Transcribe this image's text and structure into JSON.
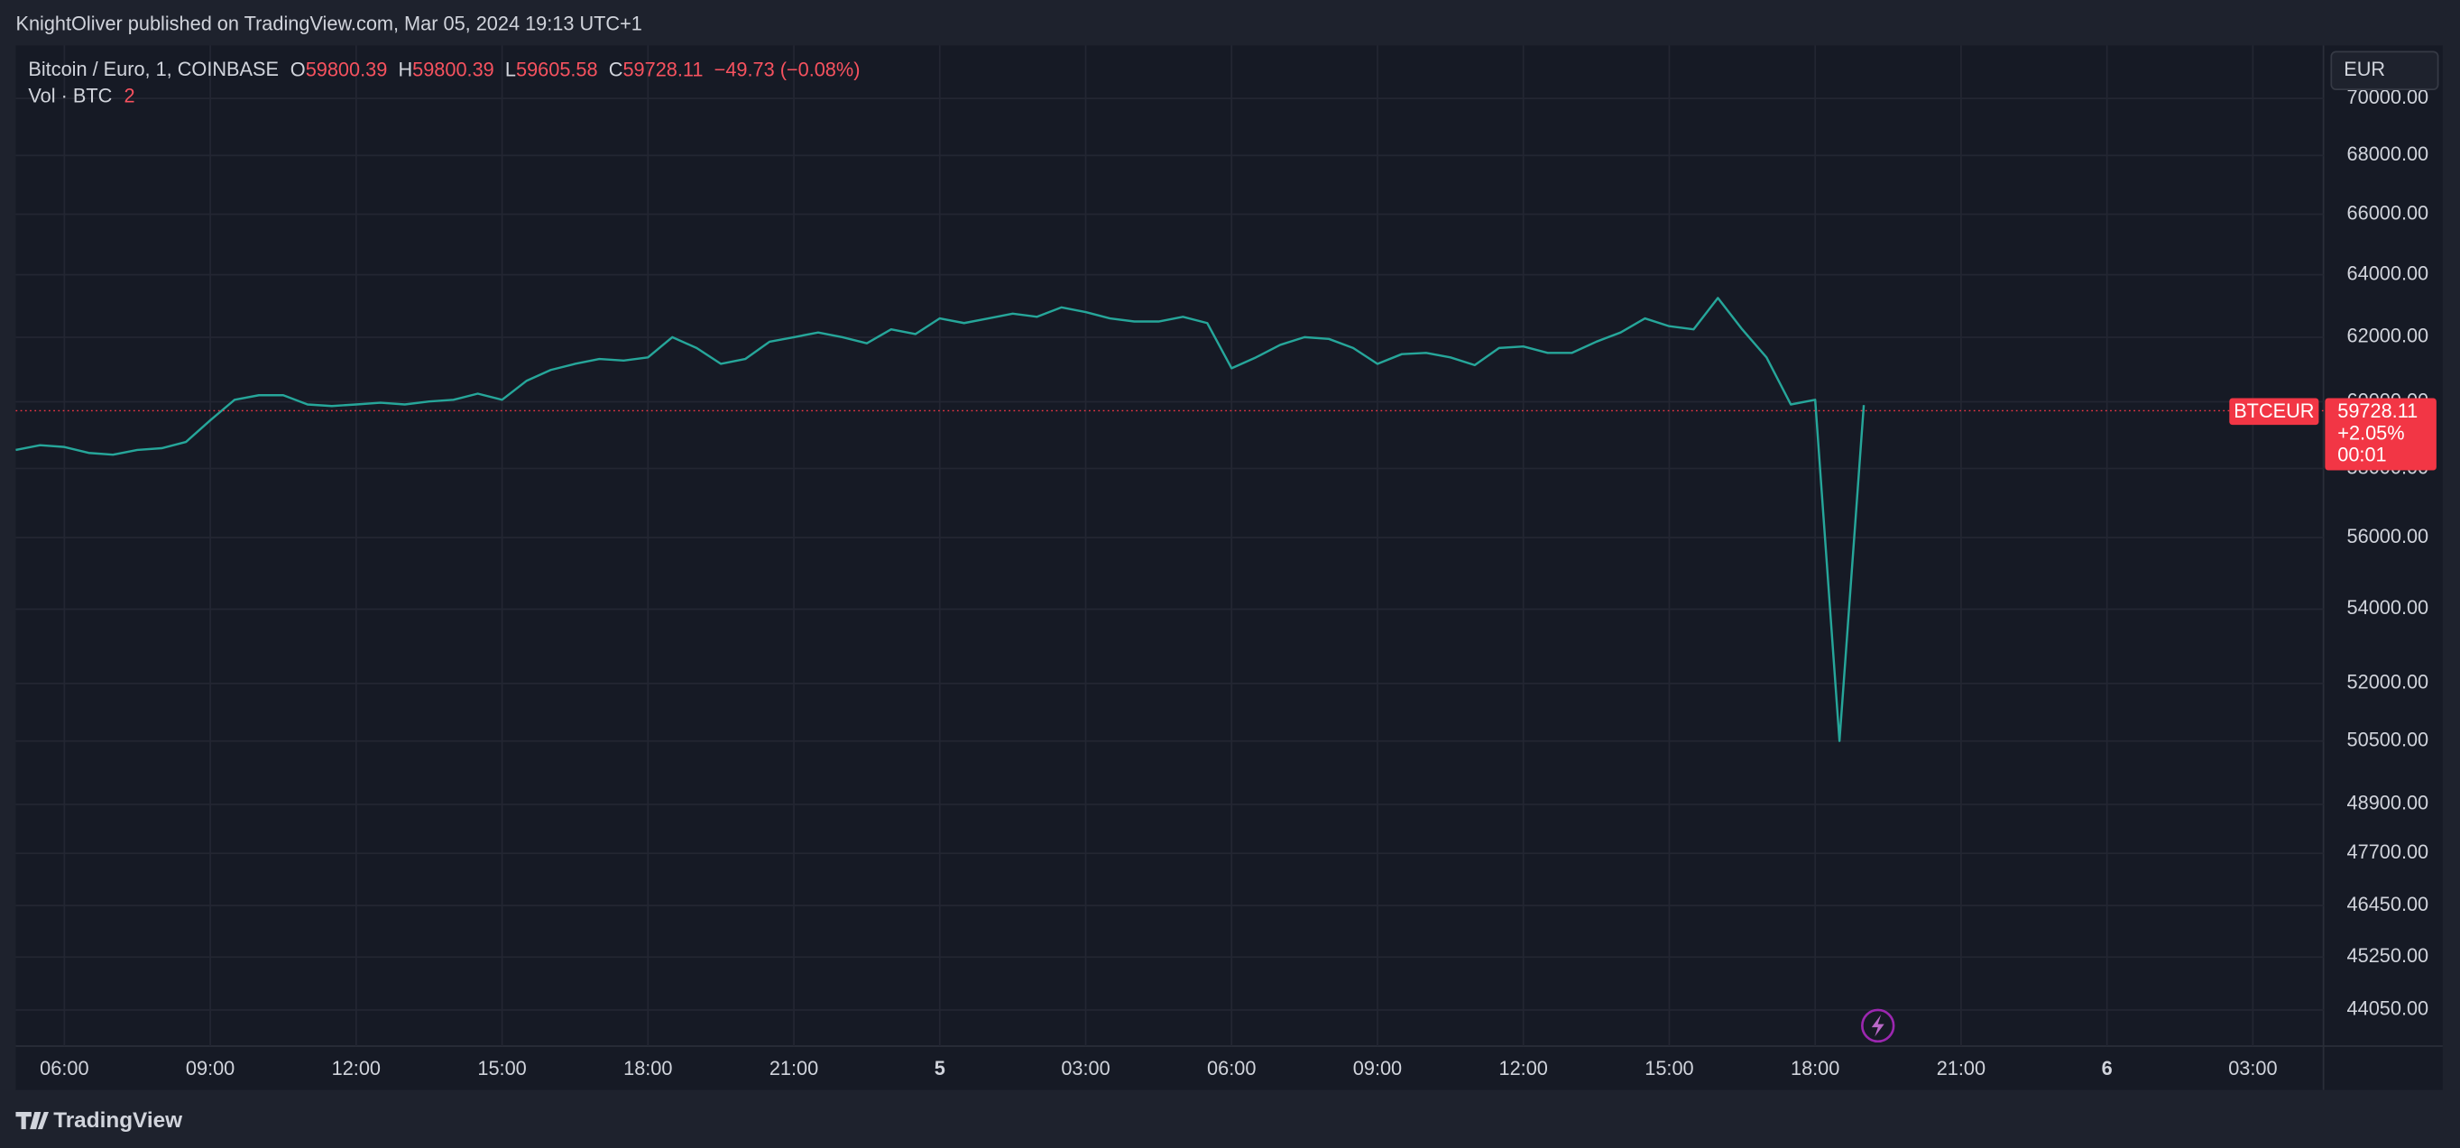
{
  "header": {
    "title": "KnightOliver published on TradingView.com, Mar 05, 2024 19:13 UTC+1"
  },
  "footer": {
    "brand": "TradingView"
  },
  "chart_data": {
    "type": "line",
    "symbol": "Bitcoin / Euro, 1, COINBASE",
    "ohlc": {
      "o_label": "O",
      "o": 59800.39,
      "h_label": "H",
      "h": 59800.39,
      "l_label": "L",
      "l": 59605.58,
      "c_label": "C",
      "change": "−49.73 (−0.08%)"
    },
    "volume_label": "Vol · BTC",
    "volume_value": 2,
    "currency": "EUR",
    "ticker": "BTCEUR",
    "last_price": 59728.11,
    "last_change": "+2.05%",
    "countdown": "00:01",
    "log_scale": true,
    "grid": true,
    "categories": [
      null,
      null,
      "06:00",
      null,
      null,
      null,
      null,
      null,
      "09:00",
      null,
      null,
      null,
      null,
      null,
      "12:00",
      null,
      null,
      null,
      null,
      null,
      "15:00",
      null,
      null,
      null,
      null,
      null,
      "18:00",
      null,
      null,
      null,
      null,
      null,
      "21:00",
      null,
      null,
      null,
      null,
      null,
      "5",
      null,
      null,
      null,
      null,
      null,
      "03:00",
      null,
      null,
      null,
      null,
      null,
      "06:00",
      null,
      null,
      null,
      null,
      null,
      "09:00",
      null,
      null,
      null,
      null,
      null,
      "12:00",
      null,
      null,
      null,
      null,
      null,
      "15:00",
      null,
      null,
      null,
      null,
      null,
      "18:00",
      null,
      null,
      null,
      null,
      null,
      "21:00",
      null,
      null,
      null,
      null,
      null,
      "6",
      null,
      null,
      null,
      null,
      null,
      "03:00",
      null,
      null,
      null
    ],
    "series": [
      {
        "name": "BTCEUR",
        "color": "#26a69a",
        "values": [
          58550,
          58690,
          58640,
          58460,
          58410,
          58550,
          58600,
          58790,
          59440,
          60060,
          60200,
          60200,
          59920,
          59870,
          59920,
          59970,
          59920,
          60010,
          60060,
          60250,
          60060,
          60640,
          60980,
          61170,
          61320,
          61270,
          61370,
          62000,
          61660,
          61170,
          61320,
          61860,
          62000,
          62150,
          62000,
          61810,
          62250,
          62100,
          62600,
          62450,
          62600,
          62750,
          62650,
          62950,
          62800,
          62600,
          62500,
          62500,
          62650,
          62450,
          61030,
          61370,
          61760,
          62000,
          61950,
          61660,
          61170,
          61470,
          61510,
          61370,
          61130,
          61660,
          61710,
          61510,
          61510,
          61860,
          62150,
          62600,
          62350,
          62250,
          63250,
          62250,
          61370,
          59920,
          60060,
          50500,
          59900,
          null,
          null,
          null,
          null,
          null,
          null,
          null,
          null,
          null,
          null,
          null,
          null,
          null,
          null,
          null,
          null,
          null,
          null,
          null
        ]
      }
    ],
    "ylim": [
      43250,
      71850
    ],
    "yticks": [
      {
        "value": 44050,
        "label": "44050.00"
      },
      {
        "value": 45250,
        "label": "45250.00"
      },
      {
        "value": 46450,
        "label": "46450.00"
      },
      {
        "value": 47700,
        "label": "47700.00"
      },
      {
        "value": 48900,
        "label": "48900.00"
      },
      {
        "value": 50500,
        "label": "50500.00"
      },
      {
        "value": 52000,
        "label": "52000.00"
      },
      {
        "value": 54000,
        "label": "54000.00"
      },
      {
        "value": 56000,
        "label": "56000.00"
      },
      {
        "value": 58000,
        "label": "58000.00"
      },
      {
        "value": 60000,
        "label": "60000.00"
      },
      {
        "value": 62000,
        "label": "62000.00"
      },
      {
        "value": 64000,
        "label": "64000.00"
      },
      {
        "value": 66000,
        "label": "66000.00"
      },
      {
        "value": 68000,
        "label": "68000.00"
      },
      {
        "value": 70000,
        "label": "70000.00"
      }
    ]
  }
}
